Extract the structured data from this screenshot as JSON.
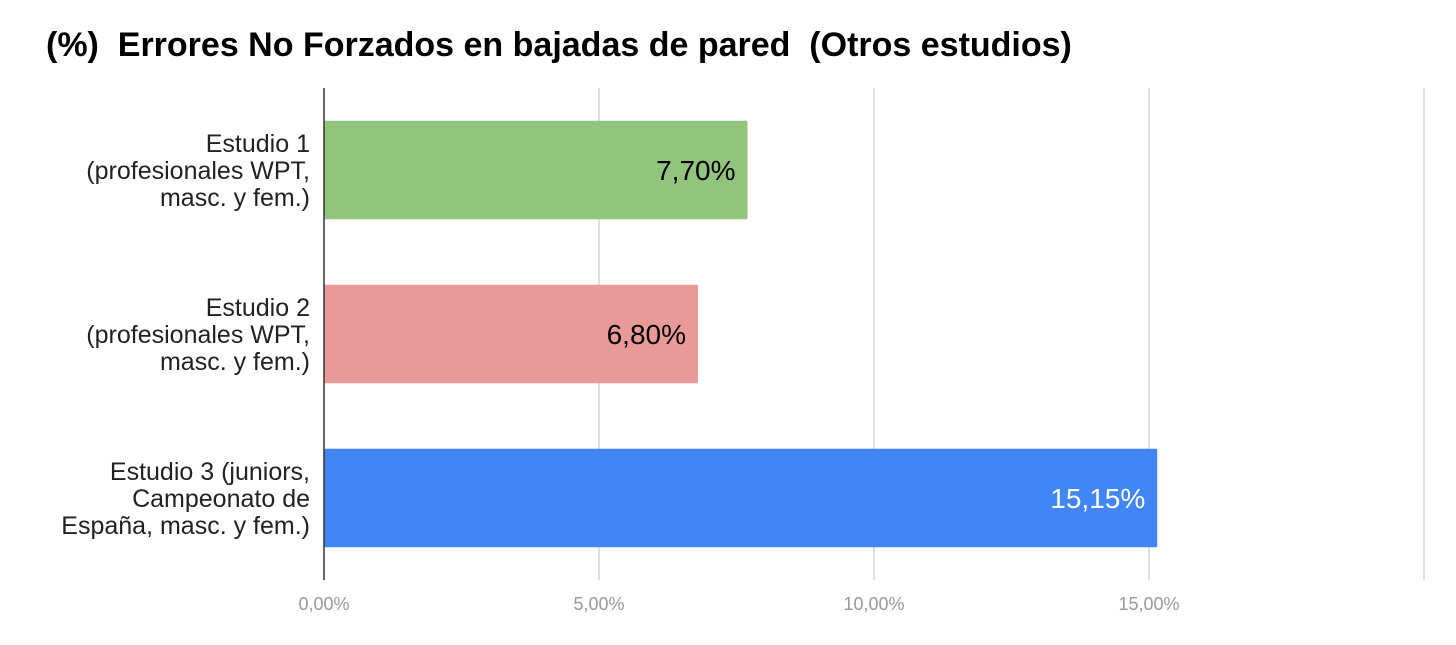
{
  "chart_data": {
    "type": "bar",
    "orientation": "horizontal",
    "title": "(%)  Errores No Forzados en bajadas de pared  (Otros estudios)",
    "categories": [
      [
        "Estudio 1",
        "(profesionales WPT,",
        "masc. y fem.)"
      ],
      [
        "Estudio 2",
        "(profesionales WPT,",
        "masc. y fem.)"
      ],
      [
        "Estudio 3 (juniors,",
        "Campeonato de",
        "España, masc. y fem.)"
      ]
    ],
    "values": [
      7.7,
      6.8,
      15.15
    ],
    "data_labels": [
      "7,70%",
      "6,80%",
      "15,15%"
    ],
    "bar_colors": [
      "#93c47d",
      "#ea9999",
      "#4285f4"
    ],
    "label_colors": [
      "#000000",
      "#000000",
      "#ffffff"
    ],
    "xlim": [
      0,
      20
    ],
    "xticks": [
      0,
      5,
      10,
      15
    ],
    "xtick_labels": [
      "0,00%",
      "5,00%",
      "10,00%",
      "15,00%"
    ],
    "grid": true,
    "legend": "none"
  }
}
